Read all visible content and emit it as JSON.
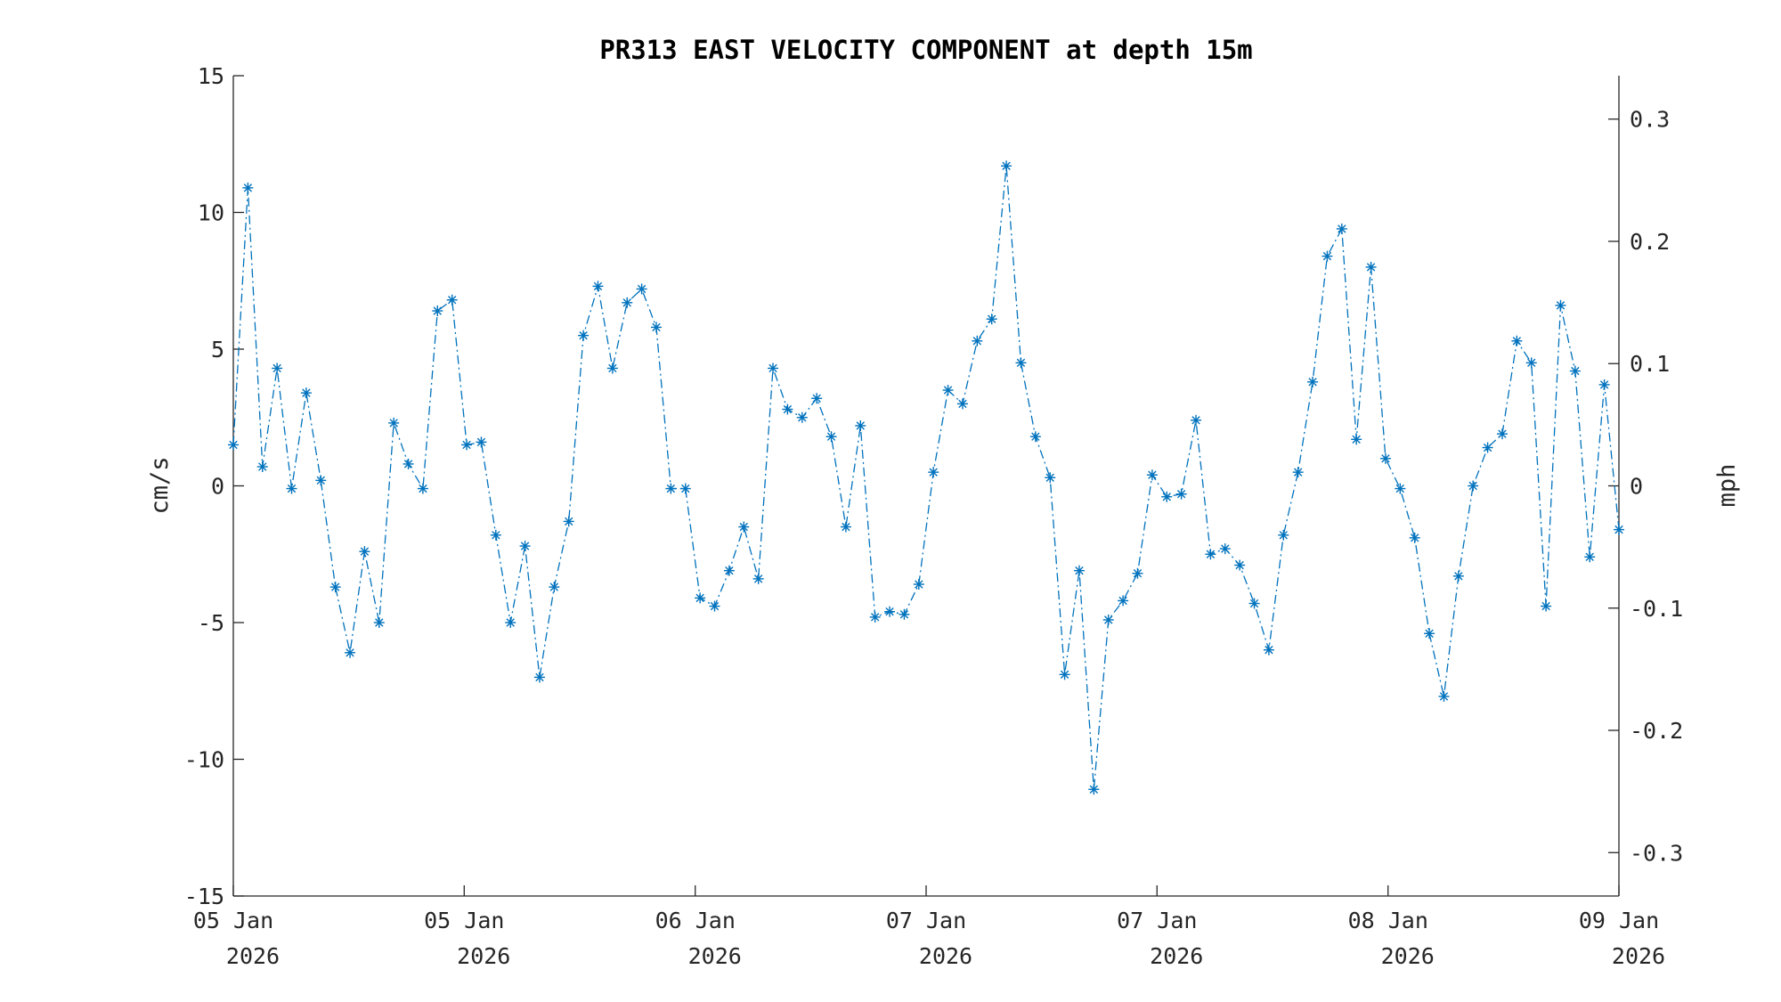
{
  "chart_data": {
    "type": "line",
    "title": "PR313 EAST VELOCITY COMPONENT at depth 15m",
    "xlabel": "",
    "ylabel": "cm/s",
    "ylabel_right": "mph",
    "ylim": [
      -15,
      15
    ],
    "ylim_right": [
      -0.3355,
      0.3355
    ],
    "xlim": [
      0,
      95
    ],
    "grid": false,
    "line_color": "#0072BD",
    "line_style": "dash-dot",
    "marker": "asterisk",
    "yticks": [
      "15",
      "10",
      "5",
      "0",
      "-5",
      "-10",
      "-15"
    ],
    "ytick_values": [
      15,
      10,
      5,
      0,
      -5,
      -10,
      -15
    ],
    "yticks_right": [
      "0.3",
      "0.2",
      "0.1",
      "0",
      "-0.1",
      "-0.2",
      "-0.3"
    ],
    "ytick_right_values": [
      0.3,
      0.2,
      0.1,
      0,
      -0.1,
      -0.2,
      -0.3
    ],
    "xtick_values": [
      0,
      15.83,
      31.67,
      47.5,
      63.33,
      79.17,
      95
    ],
    "xticks": [
      {
        "day": "05 Jan",
        "year": "2026"
      },
      {
        "day": "05 Jan",
        "year": "2026"
      },
      {
        "day": "06 Jan",
        "year": "2026"
      },
      {
        "day": "07 Jan",
        "year": "2026"
      },
      {
        "day": "07 Jan",
        "year": "2026"
      },
      {
        "day": "08 Jan",
        "year": "2026"
      },
      {
        "day": "09 Jan",
        "year": "2026"
      }
    ],
    "values": [
      1.5,
      10.9,
      0.7,
      4.3,
      -0.1,
      3.4,
      0.2,
      -3.7,
      -6.1,
      -2.4,
      -5.0,
      2.3,
      0.8,
      -0.1,
      6.4,
      6.8,
      1.5,
      1.6,
      -1.8,
      -5.0,
      -2.2,
      -7.0,
      -3.7,
      -1.3,
      5.5,
      7.3,
      4.3,
      6.7,
      7.2,
      5.8,
      -0.1,
      -0.1,
      -4.1,
      -4.4,
      -3.1,
      -1.5,
      -3.4,
      4.3,
      2.8,
      2.5,
      3.2,
      1.8,
      -1.5,
      2.2,
      -4.8,
      -4.6,
      -4.7,
      -3.6,
      0.5,
      3.5,
      3.0,
      5.3,
      6.1,
      11.7,
      4.5,
      1.8,
      0.3,
      -6.9,
      -3.1,
      -11.1,
      -4.9,
      -4.2,
      -3.2,
      0.4,
      -0.4,
      -0.3,
      2.4,
      -2.5,
      -2.3,
      -2.9,
      -4.3,
      -6.0,
      -1.8,
      0.5,
      3.8,
      8.4,
      9.4,
      1.7,
      8.0,
      1.0,
      -0.1,
      -1.9,
      -5.4,
      -7.7,
      -3.3,
      0.0,
      1.4,
      1.9,
      5.3,
      4.5,
      -4.4,
      6.6,
      4.2,
      -2.6,
      3.7,
      -1.6
    ]
  }
}
